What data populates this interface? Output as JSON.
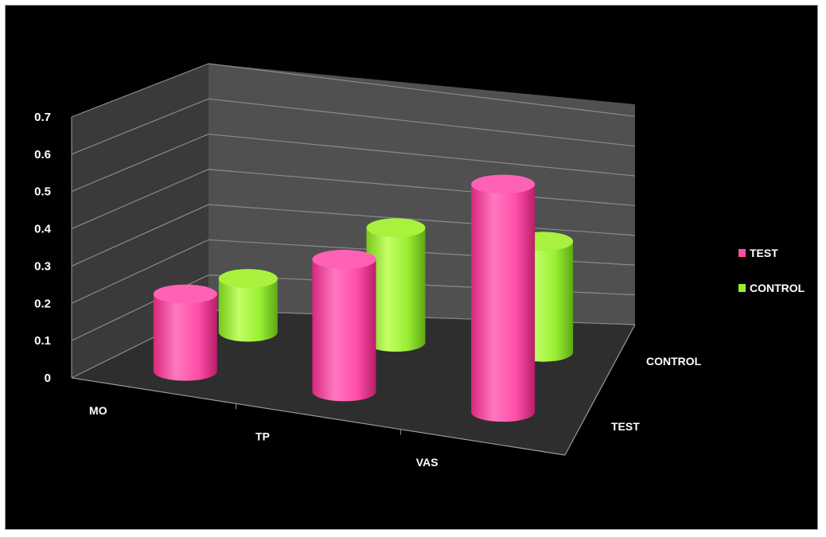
{
  "chart_data": {
    "type": "bar",
    "style": "3d-cylinder",
    "categories": [
      "MO",
      "TP",
      "VAS"
    ],
    "depth_categories": [
      "TEST",
      "CONTROL"
    ],
    "series": [
      {
        "name": "TEST",
        "values": [
          0.21,
          0.36,
          0.62
        ],
        "color": "#ff4fa8"
      },
      {
        "name": "CONTROL",
        "values": [
          0.15,
          0.32,
          0.31
        ],
        "color": "#99ee33"
      }
    ],
    "yticks": [
      "0",
      "0.1",
      "0.2",
      "0.3",
      "0.4",
      "0.5",
      "0.6",
      "0.7"
    ],
    "ylim": [
      0,
      0.7
    ],
    "grid": true,
    "legend_position": "right",
    "background": "#000000",
    "wall_color": "#505050",
    "floor_color": "#2e2e2e"
  }
}
